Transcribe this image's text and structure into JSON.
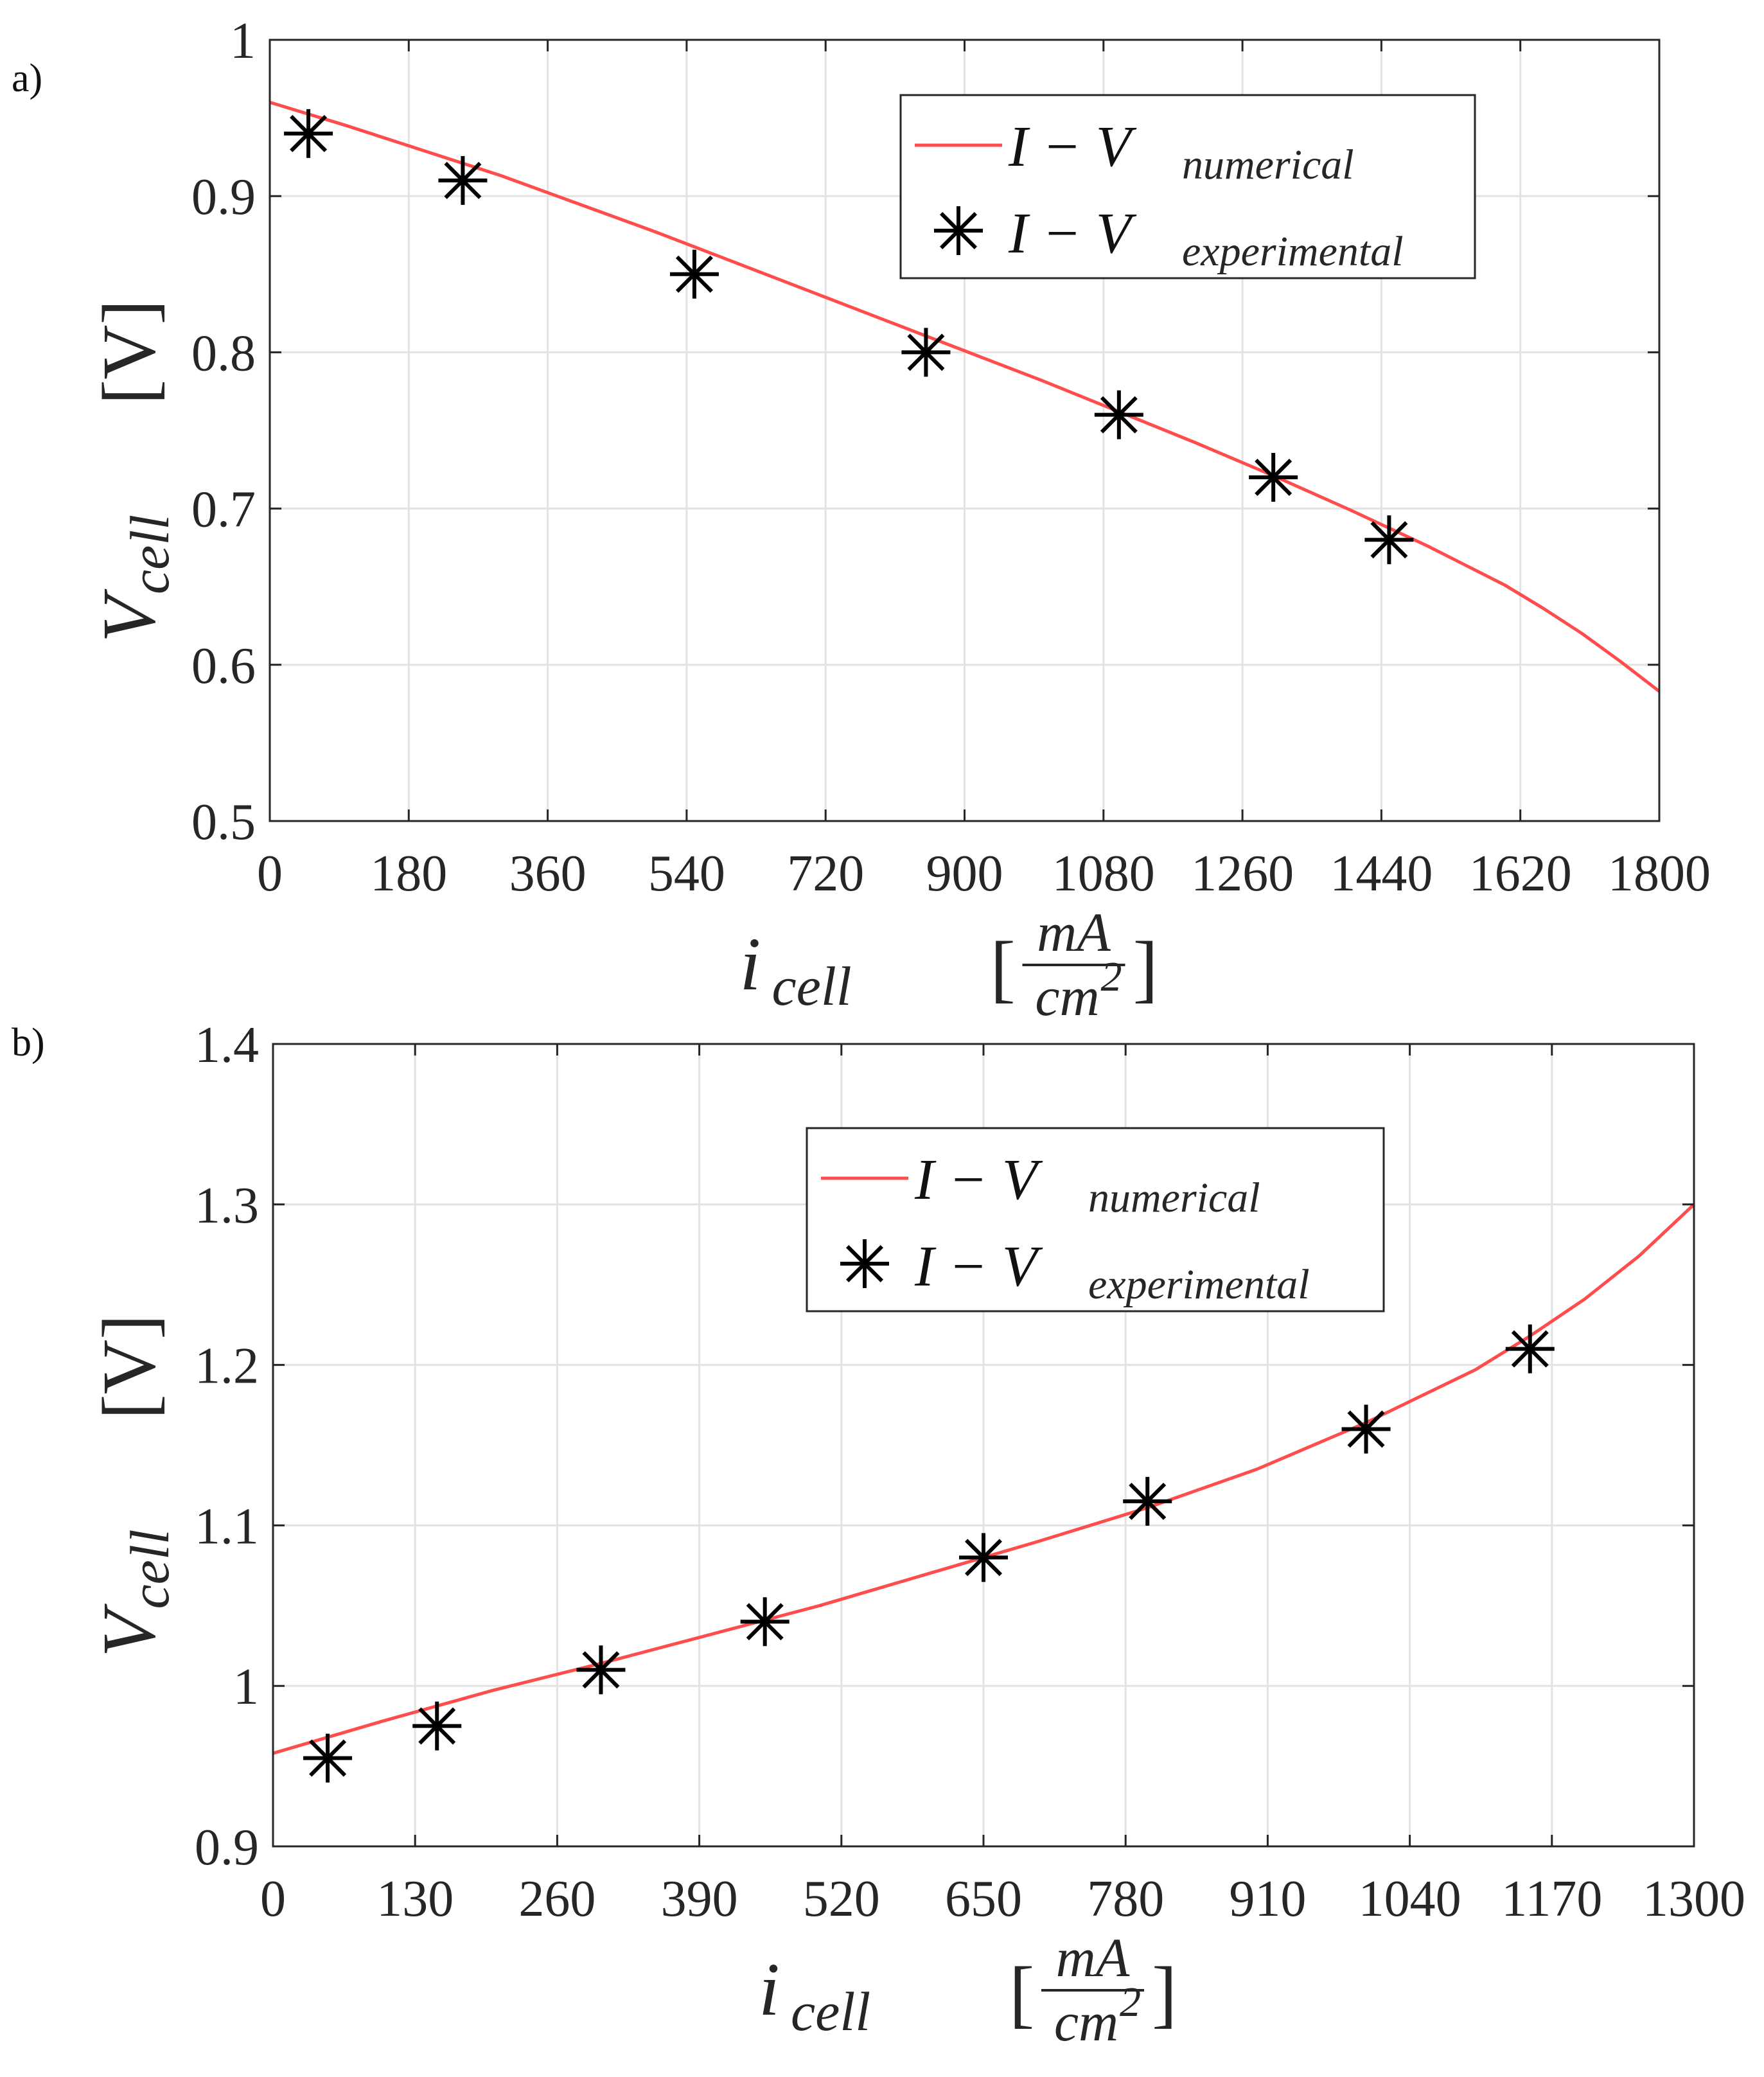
{
  "chart_data": [
    {
      "type": "line",
      "panel_label": "a)",
      "x_label_main": "i",
      "x_label_sub": "cell",
      "x_unit_num": "mA",
      "x_unit_den": "cm",
      "x_unit_den_sup": "2",
      "y_label_main": "V",
      "y_label_sub": "cell",
      "y_unit": "[V]",
      "xlim": [
        0,
        1800
      ],
      "ylim": [
        0.5,
        1.0
      ],
      "xticks": [
        0,
        180,
        360,
        540,
        720,
        900,
        1080,
        1260,
        1440,
        1620,
        1800
      ],
      "yticks": [
        0.5,
        0.6,
        0.7,
        0.8,
        0.9,
        1.0
      ],
      "xtick_labels": [
        "0",
        "180",
        "360",
        "540",
        "720",
        "900",
        "1080",
        "1260",
        "1440",
        "1620",
        "1800"
      ],
      "ytick_labels": [
        "0.5",
        "0.6",
        "0.7",
        "0.8",
        "0.9",
        "1"
      ],
      "grid": true,
      "legend_position": "top-right",
      "series": [
        {
          "name": "I − V numerical",
          "legend_main": "I − V",
          "legend_sub": "numerical",
          "style": "line",
          "color": "#ff4d4d",
          "x": [
            0,
            100,
            200,
            300,
            400,
            500,
            600,
            700,
            800,
            900,
            1000,
            1100,
            1200,
            1300,
            1400,
            1500,
            1600,
            1650,
            1700,
            1750,
            1800
          ],
          "y": [
            0.96,
            0.945,
            0.929,
            0.913,
            0.895,
            0.877,
            0.858,
            0.839,
            0.82,
            0.801,
            0.782,
            0.762,
            0.742,
            0.721,
            0.699,
            0.676,
            0.651,
            0.636,
            0.62,
            0.602,
            0.583
          ]
        },
        {
          "name": "I − V experimental",
          "legend_main": "I − V",
          "legend_sub": "experimental",
          "style": "marker",
          "marker": "asterisk",
          "color": "#000000",
          "x": [
            50,
            250,
            550,
            850,
            1100,
            1300,
            1450
          ],
          "y": [
            0.94,
            0.91,
            0.85,
            0.8,
            0.76,
            0.72,
            0.68
          ]
        }
      ]
    },
    {
      "type": "line",
      "panel_label": "b)",
      "x_label_main": "i",
      "x_label_sub": "cell",
      "x_unit_num": "mA",
      "x_unit_den": "cm",
      "x_unit_den_sup": "2",
      "y_label_main": "V",
      "y_label_sub": "cell",
      "y_unit": "[V]",
      "xlim": [
        0,
        1300
      ],
      "ylim": [
        0.9,
        1.4
      ],
      "xticks": [
        0,
        130,
        260,
        390,
        520,
        650,
        780,
        910,
        1040,
        1170,
        1300
      ],
      "yticks": [
        0.9,
        1.0,
        1.1,
        1.2,
        1.3,
        1.4
      ],
      "xtick_labels": [
        "0",
        "130",
        "260",
        "390",
        "520",
        "650",
        "780",
        "910",
        "1040",
        "1170",
        "1300"
      ],
      "ytick_labels": [
        "0.9",
        "1",
        "1.1",
        "1.2",
        "1.3",
        "1.4"
      ],
      "grid": true,
      "legend_position": "top-center",
      "series": [
        {
          "name": "I − V numerical",
          "legend_main": "I − V",
          "legend_sub": "numerical",
          "style": "line",
          "color": "#ff4d4d",
          "x": [
            0,
            100,
            200,
            300,
            400,
            500,
            600,
            700,
            800,
            900,
            1000,
            1100,
            1150,
            1200,
            1250,
            1300
          ],
          "y": [
            0.958,
            0.978,
            0.997,
            1.014,
            1.032,
            1.05,
            1.07,
            1.09,
            1.111,
            1.135,
            1.164,
            1.197,
            1.218,
            1.241,
            1.268,
            1.3
          ]
        },
        {
          "name": "I − V experimental",
          "legend_main": "I − V",
          "legend_sub": "experimental",
          "style": "marker",
          "marker": "asterisk",
          "color": "#000000",
          "x": [
            50,
            150,
            300,
            450,
            650,
            800,
            1000,
            1150
          ],
          "y": [
            0.955,
            0.975,
            1.01,
            1.04,
            1.08,
            1.115,
            1.16,
            1.21
          ]
        }
      ]
    }
  ]
}
